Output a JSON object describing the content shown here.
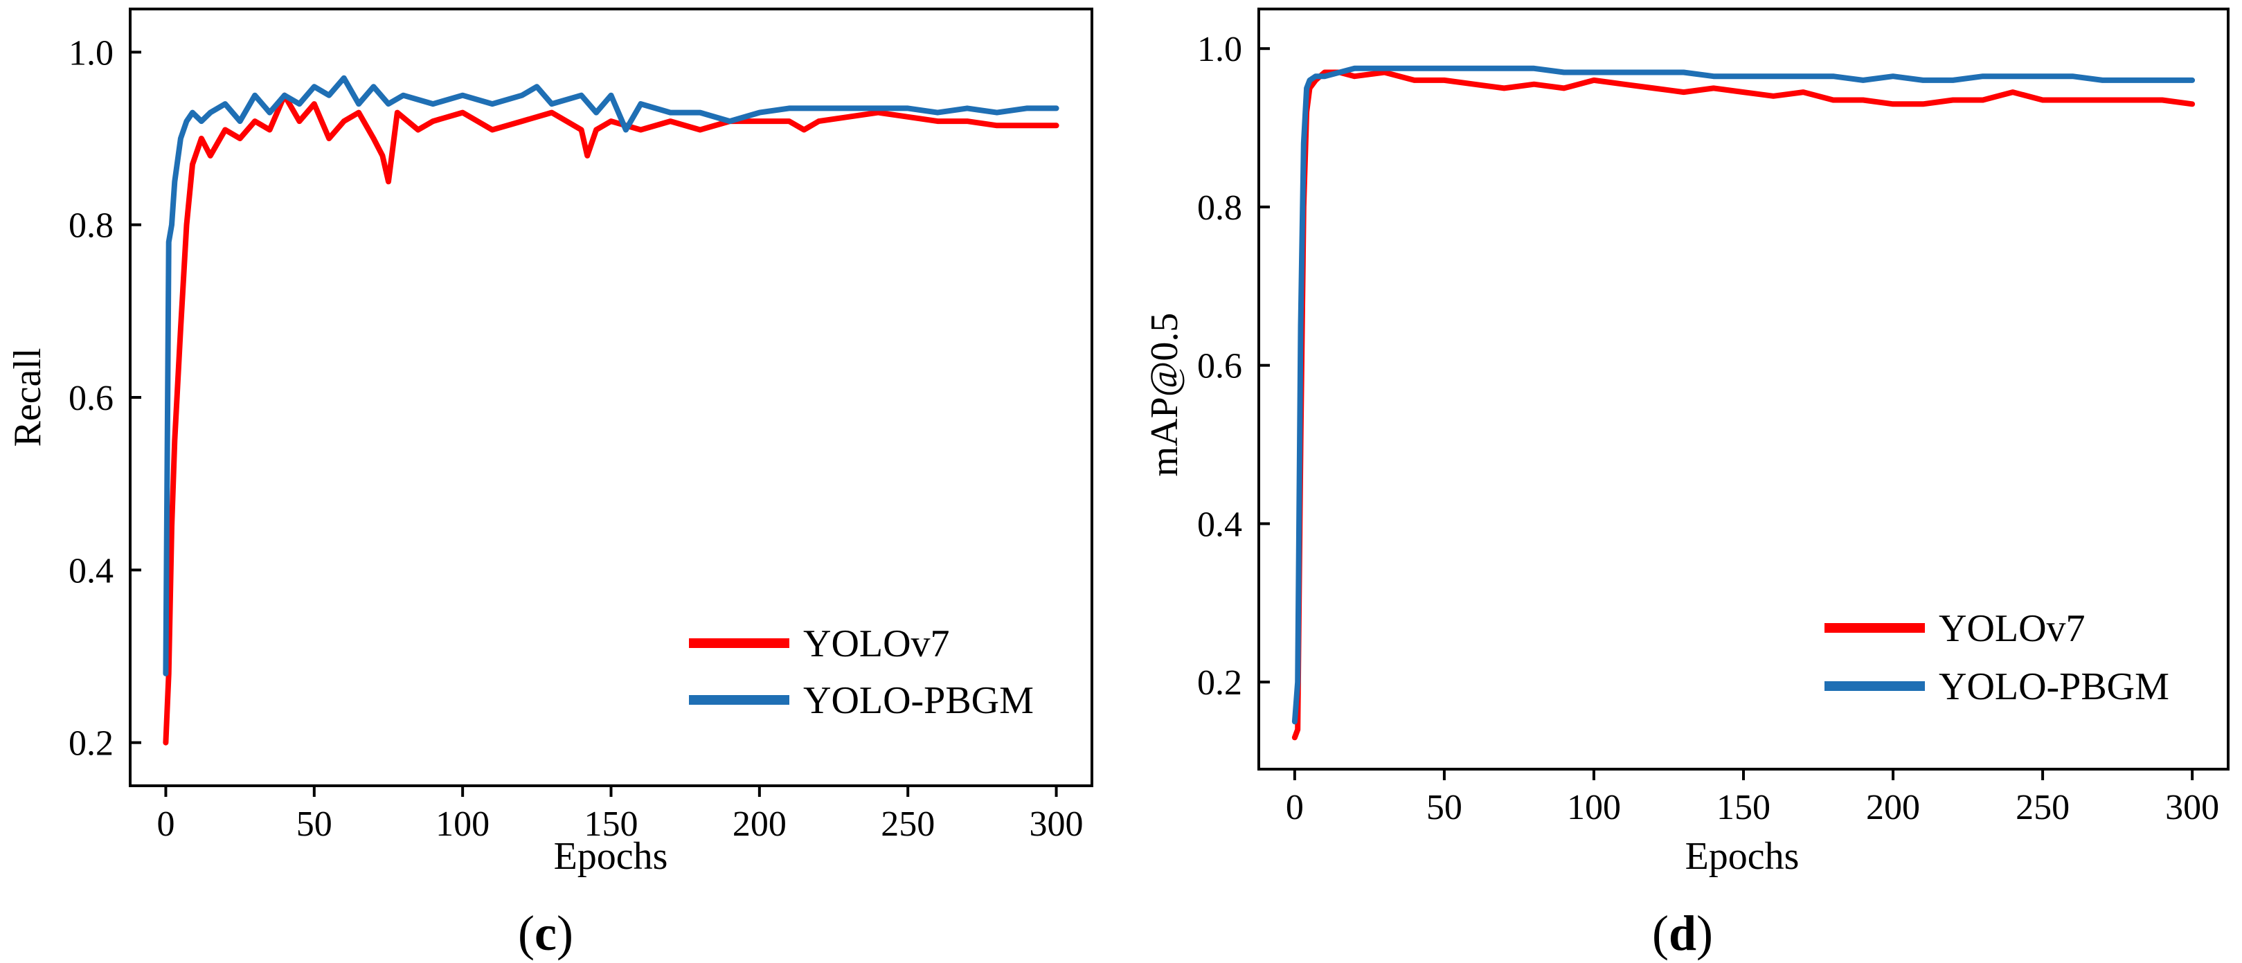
{
  "colors": {
    "yolov7": "#ff0000",
    "yolo_pbgm": "#1f6fb4"
  },
  "chart_data": [
    {
      "type": "line",
      "panel_label": "c",
      "title": "",
      "xlabel": "Epochs",
      "ylabel": "Recall",
      "xlim": [
        -12,
        312
      ],
      "ylim": [
        0.15,
        1.05
      ],
      "xticks": [
        0,
        50,
        100,
        150,
        200,
        250,
        300
      ],
      "yticks": [
        0.2,
        0.4,
        0.6,
        0.8,
        1.0
      ],
      "xtick_labels": [
        "0",
        "50",
        "100",
        "150",
        "200",
        "250",
        "300"
      ],
      "ytick_labels": [
        "0.2",
        "0.4",
        "0.6",
        "0.8",
        "1.0"
      ],
      "legend_position": "bottom-right",
      "series": [
        {
          "name": "YOLOv7",
          "color": "#ff0000",
          "x": [
            0,
            1,
            2,
            3,
            5,
            7,
            9,
            12,
            15,
            20,
            25,
            30,
            35,
            40,
            45,
            50,
            55,
            60,
            65,
            70,
            73,
            75,
            78,
            85,
            90,
            100,
            110,
            120,
            130,
            140,
            142,
            145,
            150,
            160,
            170,
            180,
            190,
            200,
            210,
            215,
            220,
            230,
            240,
            250,
            260,
            270,
            280,
            290,
            300
          ],
          "values": [
            0.2,
            0.28,
            0.45,
            0.55,
            0.68,
            0.8,
            0.87,
            0.9,
            0.88,
            0.91,
            0.9,
            0.92,
            0.91,
            0.95,
            0.92,
            0.94,
            0.9,
            0.92,
            0.93,
            0.9,
            0.88,
            0.85,
            0.93,
            0.91,
            0.92,
            0.93,
            0.91,
            0.92,
            0.93,
            0.91,
            0.88,
            0.91,
            0.92,
            0.91,
            0.92,
            0.91,
            0.92,
            0.92,
            0.92,
            0.91,
            0.92,
            0.925,
            0.93,
            0.925,
            0.92,
            0.92,
            0.915,
            0.915,
            0.915
          ]
        },
        {
          "name": "YOLO-PBGM",
          "color": "#1f6fb4",
          "x": [
            0,
            1,
            2,
            3,
            5,
            7,
            9,
            12,
            15,
            20,
            25,
            30,
            35,
            40,
            45,
            50,
            55,
            60,
            65,
            70,
            75,
            80,
            90,
            100,
            110,
            120,
            125,
            130,
            140,
            145,
            150,
            155,
            160,
            170,
            180,
            190,
            200,
            210,
            220,
            230,
            240,
            250,
            260,
            270,
            280,
            290,
            300
          ],
          "values": [
            0.28,
            0.78,
            0.8,
            0.85,
            0.9,
            0.92,
            0.93,
            0.92,
            0.93,
            0.94,
            0.92,
            0.95,
            0.93,
            0.95,
            0.94,
            0.96,
            0.95,
            0.97,
            0.94,
            0.96,
            0.94,
            0.95,
            0.94,
            0.95,
            0.94,
            0.95,
            0.96,
            0.94,
            0.95,
            0.93,
            0.95,
            0.91,
            0.94,
            0.93,
            0.93,
            0.92,
            0.93,
            0.935,
            0.935,
            0.935,
            0.935,
            0.935,
            0.93,
            0.935,
            0.93,
            0.935,
            0.935
          ]
        }
      ]
    },
    {
      "type": "line",
      "panel_label": "d",
      "title": "",
      "xlabel": "Epochs",
      "ylabel": "mAP@0.5",
      "xlim": [
        -12,
        312
      ],
      "ylim": [
        0.09,
        1.05
      ],
      "xticks": [
        0,
        50,
        100,
        150,
        200,
        250,
        300
      ],
      "yticks": [
        0.2,
        0.4,
        0.6,
        0.8,
        1.0
      ],
      "xtick_labels": [
        "0",
        "50",
        "100",
        "150",
        "200",
        "250",
        "300"
      ],
      "ytick_labels": [
        "0.2",
        "0.4",
        "0.6",
        "0.8",
        "1.0"
      ],
      "legend_position": "bottom-right",
      "series": [
        {
          "name": "YOLOv7",
          "color": "#ff0000",
          "x": [
            0,
            1,
            2,
            3,
            4,
            5,
            7,
            10,
            15,
            20,
            30,
            40,
            50,
            60,
            70,
            80,
            90,
            100,
            110,
            120,
            130,
            140,
            150,
            160,
            170,
            180,
            190,
            200,
            210,
            220,
            230,
            240,
            250,
            260,
            270,
            280,
            290,
            300
          ],
          "values": [
            0.13,
            0.14,
            0.5,
            0.8,
            0.92,
            0.95,
            0.96,
            0.97,
            0.97,
            0.965,
            0.97,
            0.96,
            0.96,
            0.955,
            0.95,
            0.955,
            0.95,
            0.96,
            0.955,
            0.95,
            0.945,
            0.95,
            0.945,
            0.94,
            0.945,
            0.935,
            0.935,
            0.93,
            0.93,
            0.935,
            0.935,
            0.945,
            0.935,
            0.935,
            0.935,
            0.935,
            0.935,
            0.93
          ]
        },
        {
          "name": "YOLO-PBGM",
          "color": "#1f6fb4",
          "x": [
            0,
            1,
            2,
            3,
            4,
            5,
            7,
            10,
            15,
            20,
            30,
            40,
            50,
            60,
            70,
            80,
            90,
            100,
            110,
            120,
            130,
            140,
            150,
            160,
            170,
            180,
            190,
            200,
            210,
            220,
            230,
            240,
            250,
            260,
            270,
            280,
            290,
            300
          ],
          "values": [
            0.15,
            0.2,
            0.65,
            0.88,
            0.95,
            0.96,
            0.965,
            0.965,
            0.97,
            0.975,
            0.975,
            0.975,
            0.975,
            0.975,
            0.975,
            0.975,
            0.97,
            0.97,
            0.97,
            0.97,
            0.97,
            0.965,
            0.965,
            0.965,
            0.965,
            0.965,
            0.96,
            0.965,
            0.96,
            0.96,
            0.965,
            0.965,
            0.965,
            0.965,
            0.96,
            0.96,
            0.96,
            0.96
          ]
        }
      ]
    }
  ]
}
